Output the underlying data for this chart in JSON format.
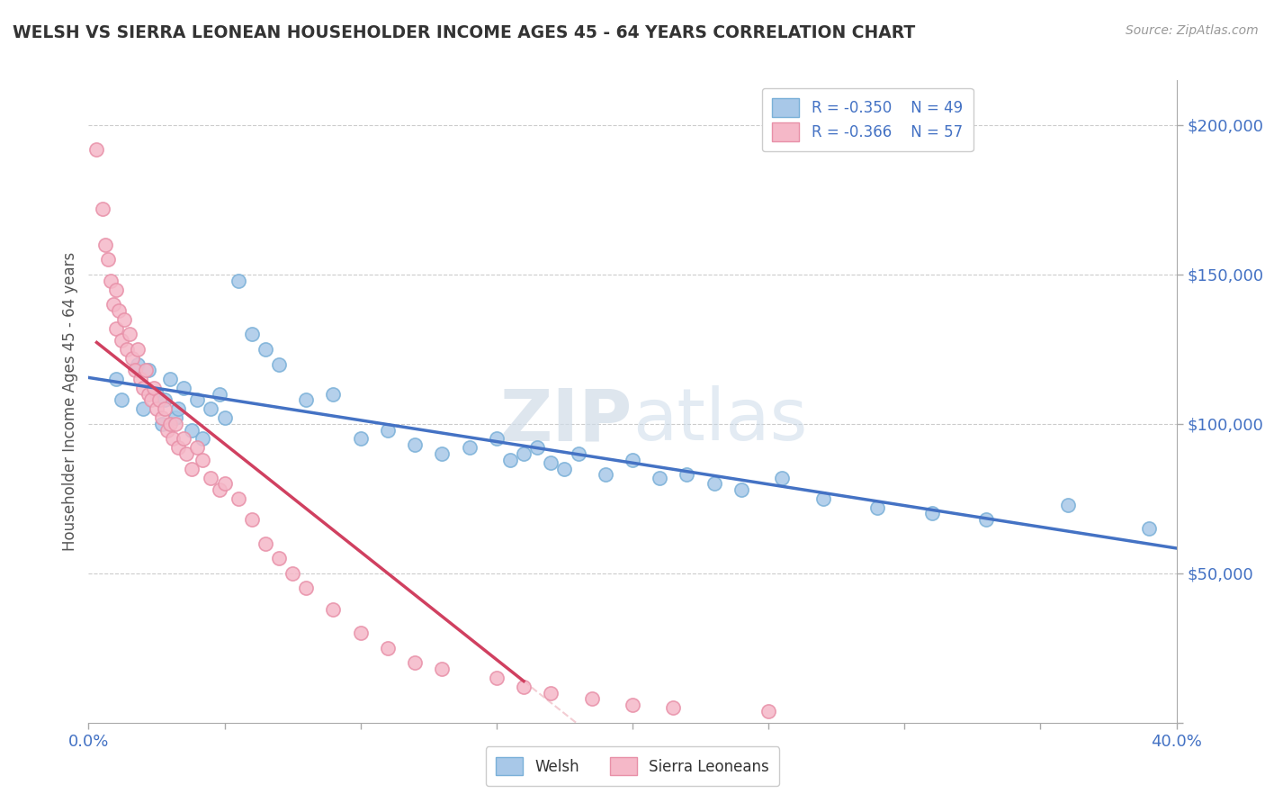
{
  "title": "WELSH VS SIERRA LEONEAN HOUSEHOLDER INCOME AGES 45 - 64 YEARS CORRELATION CHART",
  "source_text": "Source: ZipAtlas.com",
  "ylabel": "Householder Income Ages 45 - 64 years",
  "xlim": [
    0.0,
    0.4
  ],
  "ylim": [
    0,
    215000
  ],
  "xticks": [
    0.0,
    0.05,
    0.1,
    0.15,
    0.2,
    0.25,
    0.3,
    0.35,
    0.4
  ],
  "xticklabels": [
    "0.0%",
    "",
    "",
    "",
    "",
    "",
    "",
    "",
    "40.0%"
  ],
  "ytick_values": [
    0,
    50000,
    100000,
    150000,
    200000
  ],
  "ytick_labels": [
    "",
    "$50,000",
    "$100,000",
    "$150,000",
    "$200,000"
  ],
  "welsh_color": "#a8c8e8",
  "welsh_edge_color": "#7ab0d8",
  "sierra_color": "#f5b8c8",
  "sierra_edge_color": "#e890a8",
  "welsh_line_color": "#4472c4",
  "sierra_line_color": "#d04060",
  "diagonal_color": "#f0c0c8",
  "legend_r_welsh": "R = -0.350",
  "legend_n_welsh": "N = 49",
  "legend_r_sierra": "R = -0.366",
  "legend_n_sierra": "N = 57",
  "watermark_zip": "ZIP",
  "watermark_atlas": "atlas",
  "title_color": "#333333",
  "axis_label_color": "#555555",
  "tick_color": "#4472c4",
  "background_color": "#ffffff",
  "grid_color": "#cccccc",
  "welsh_scatter": {
    "x": [
      0.01,
      0.012,
      0.018,
      0.02,
      0.022,
      0.025,
      0.027,
      0.028,
      0.03,
      0.032,
      0.033,
      0.035,
      0.038,
      0.04,
      0.042,
      0.045,
      0.048,
      0.05,
      0.055,
      0.06,
      0.065,
      0.07,
      0.08,
      0.09,
      0.1,
      0.11,
      0.12,
      0.13,
      0.14,
      0.15,
      0.155,
      0.16,
      0.165,
      0.17,
      0.175,
      0.18,
      0.19,
      0.2,
      0.21,
      0.22,
      0.23,
      0.24,
      0.255,
      0.27,
      0.29,
      0.31,
      0.33,
      0.36,
      0.39
    ],
    "y": [
      115000,
      108000,
      120000,
      105000,
      118000,
      110000,
      100000,
      108000,
      115000,
      102000,
      105000,
      112000,
      98000,
      108000,
      95000,
      105000,
      110000,
      102000,
      148000,
      130000,
      125000,
      120000,
      108000,
      110000,
      95000,
      98000,
      93000,
      90000,
      92000,
      95000,
      88000,
      90000,
      92000,
      87000,
      85000,
      90000,
      83000,
      88000,
      82000,
      83000,
      80000,
      78000,
      82000,
      75000,
      72000,
      70000,
      68000,
      73000,
      65000
    ]
  },
  "sierra_scatter": {
    "x": [
      0.003,
      0.005,
      0.006,
      0.007,
      0.008,
      0.009,
      0.01,
      0.01,
      0.011,
      0.012,
      0.013,
      0.014,
      0.015,
      0.016,
      0.017,
      0.018,
      0.019,
      0.02,
      0.021,
      0.022,
      0.023,
      0.024,
      0.025,
      0.026,
      0.027,
      0.028,
      0.029,
      0.03,
      0.031,
      0.032,
      0.033,
      0.035,
      0.036,
      0.038,
      0.04,
      0.042,
      0.045,
      0.048,
      0.05,
      0.055,
      0.06,
      0.065,
      0.07,
      0.075,
      0.08,
      0.09,
      0.1,
      0.11,
      0.12,
      0.13,
      0.15,
      0.16,
      0.17,
      0.185,
      0.2,
      0.215,
      0.25
    ],
    "y": [
      192000,
      172000,
      160000,
      155000,
      148000,
      140000,
      145000,
      132000,
      138000,
      128000,
      135000,
      125000,
      130000,
      122000,
      118000,
      125000,
      115000,
      112000,
      118000,
      110000,
      108000,
      112000,
      105000,
      108000,
      102000,
      105000,
      98000,
      100000,
      95000,
      100000,
      92000,
      95000,
      90000,
      85000,
      92000,
      88000,
      82000,
      78000,
      80000,
      75000,
      68000,
      60000,
      55000,
      50000,
      45000,
      38000,
      30000,
      25000,
      20000,
      18000,
      15000,
      12000,
      10000,
      8000,
      6000,
      5000,
      4000
    ]
  },
  "sierra_line_xrange": [
    0.003,
    0.16
  ],
  "welsh_line_xrange": [
    0.0,
    0.4
  ]
}
